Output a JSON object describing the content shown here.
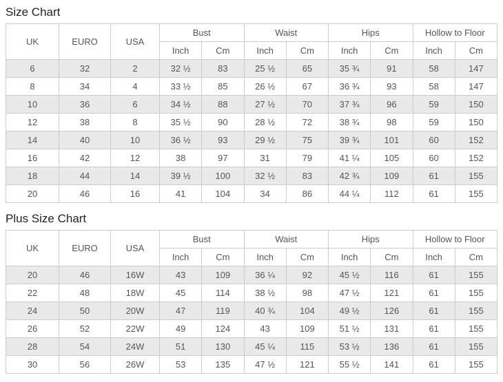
{
  "colors": {
    "alt_row_background": "#e9e9e9",
    "border": "#cccccc",
    "body_text": "#555555",
    "title_text": "#222222",
    "page_background": "#ffffff"
  },
  "tables": [
    {
      "title": "Size Chart",
      "header": {
        "simple": [
          "UK",
          "EURO",
          "USA"
        ],
        "groups": [
          "Bust",
          "Waist",
          "Hips",
          "Hollow to Floor"
        ],
        "subs": [
          "Inch",
          "Cm"
        ]
      },
      "rows": [
        [
          "6",
          "32",
          "2",
          "32 ½",
          "83",
          "25 ½",
          "65",
          "35 ¾",
          "91",
          "58",
          "147"
        ],
        [
          "8",
          "34",
          "4",
          "33 ½",
          "85",
          "26 ½",
          "67",
          "36 ¾",
          "93",
          "58",
          "147"
        ],
        [
          "10",
          "36",
          "6",
          "34 ½",
          "88",
          "27 ½",
          "70",
          "37 ¾",
          "96",
          "59",
          "150"
        ],
        [
          "12",
          "38",
          "8",
          "35 ½",
          "90",
          "28 ½",
          "72",
          "38 ¾",
          "98",
          "59",
          "150"
        ],
        [
          "14",
          "40",
          "10",
          "36 ½",
          "93",
          "29 ½",
          "75",
          "39 ¾",
          "101",
          "60",
          "152"
        ],
        [
          "16",
          "42",
          "12",
          "38",
          "97",
          "31",
          "79",
          "41 ¼",
          "105",
          "60",
          "152"
        ],
        [
          "18",
          "44",
          "14",
          "39 ½",
          "100",
          "32 ½",
          "83",
          "42 ¾",
          "109",
          "61",
          "155"
        ],
        [
          "20",
          "46",
          "16",
          "41",
          "104",
          "34",
          "86",
          "44 ¼",
          "112",
          "61",
          "155"
        ]
      ]
    },
    {
      "title": "Plus Size Chart",
      "header": {
        "simple": [
          "UK",
          "EURO",
          "USA"
        ],
        "groups": [
          "Bust",
          "Waist",
          "Hips",
          "Hollow to Floor"
        ],
        "subs": [
          "Inch",
          "Cm"
        ]
      },
      "rows": [
        [
          "20",
          "46",
          "16W",
          "43",
          "109",
          "36 ¼",
          "92",
          "45 ½",
          "116",
          "61",
          "155"
        ],
        [
          "22",
          "48",
          "18W",
          "45",
          "114",
          "38 ½",
          "98",
          "47 ½",
          "121",
          "61",
          "155"
        ],
        [
          "24",
          "50",
          "20W",
          "47",
          "119",
          "40 ¾",
          "104",
          "49 ½",
          "126",
          "61",
          "155"
        ],
        [
          "26",
          "52",
          "22W",
          "49",
          "124",
          "43",
          "109",
          "51 ½",
          "131",
          "61",
          "155"
        ],
        [
          "28",
          "54",
          "24W",
          "51",
          "130",
          "45 ¼",
          "115",
          "53 ½",
          "136",
          "61",
          "155"
        ],
        [
          "30",
          "56",
          "26W",
          "53",
          "135",
          "47 ½",
          "121",
          "55 ½",
          "141",
          "61",
          "155"
        ]
      ]
    }
  ]
}
